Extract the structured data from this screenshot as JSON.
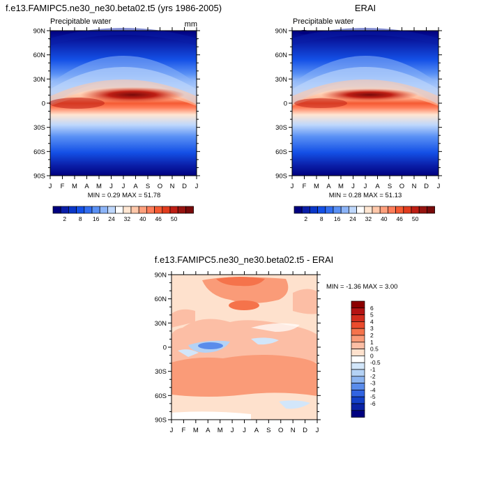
{
  "chart_data": [
    {
      "type": "heatmap",
      "title": "f.e13.FAMIPC5.ne30_ne30.beta02.t5 (yrs 1986-2005)",
      "subtitle": "Precipitable water",
      "units": "mm",
      "x_ticks": [
        "J",
        "F",
        "M",
        "A",
        "M",
        "J",
        "J",
        "A",
        "S",
        "O",
        "N",
        "D",
        "J"
      ],
      "y_ticks": [
        "90N",
        "60N",
        "30N",
        "0",
        "30S",
        "60S",
        "90S"
      ],
      "stats_label": "MIN =  0.29 MAX =  51.78",
      "colorbar": {
        "levels": [
          "2",
          "8",
          "16",
          "24",
          "32",
          "40",
          "46",
          "50"
        ],
        "colors": [
          "#00007f",
          "#0a1ea8",
          "#0a37c8",
          "#1450e6",
          "#326ef0",
          "#5a91f5",
          "#8cb4f8",
          "#bed7fc",
          "#ffffff",
          "#ffe6d2",
          "#ffc8aa",
          "#ffa07d",
          "#ff7d5a",
          "#f55a32",
          "#e13c1e",
          "#be1e14",
          "#961410",
          "#780a0a"
        ]
      }
    },
    {
      "type": "heatmap",
      "title": "ERAI",
      "subtitle": "Precipitable water",
      "x_ticks": [
        "J",
        "F",
        "M",
        "A",
        "M",
        "J",
        "J",
        "A",
        "S",
        "O",
        "N",
        "D",
        "J"
      ],
      "y_ticks": [
        "90N",
        "60N",
        "30N",
        "0",
        "30S",
        "60S",
        "90S"
      ],
      "stats_label": "MIN =  0.28 MAX =  51.13",
      "colorbar": {
        "levels": [
          "2",
          "8",
          "16",
          "24",
          "32",
          "40",
          "46",
          "50"
        ],
        "colors": [
          "#00007f",
          "#0a1ea8",
          "#0a37c8",
          "#1450e6",
          "#326ef0",
          "#5a91f5",
          "#8cb4f8",
          "#bed7fc",
          "#ffffff",
          "#ffe6d2",
          "#ffc8aa",
          "#ffa07d",
          "#ff7d5a",
          "#f55a32",
          "#e13c1e",
          "#be1e14",
          "#961410",
          "#780a0a"
        ]
      }
    },
    {
      "type": "heatmap",
      "title": "f.e13.FAMIPC5.ne30_ne30.beta02.t5 - ERAI",
      "x_ticks": [
        "J",
        "F",
        "M",
        "A",
        "M",
        "J",
        "J",
        "A",
        "S",
        "O",
        "N",
        "D",
        "J"
      ],
      "y_ticks": [
        "90N",
        "60N",
        "30N",
        "0",
        "30S",
        "60S",
        "90S"
      ],
      "stats_label": "MIN =  -1.36 MAX =   3.00",
      "colorbar": {
        "levels": [
          "6",
          "5",
          "4",
          "3",
          "2",
          "1",
          "0.5",
          "0",
          "-0.5",
          "-1",
          "-2",
          "-3",
          "-4",
          "-5",
          "-6"
        ],
        "colors": [
          "#8c0000",
          "#b41414",
          "#d22d1e",
          "#eb4b2d",
          "#f5734b",
          "#fa9b78",
          "#fcbea5",
          "#fee1cd",
          "#ffffff",
          "#d2e6fa",
          "#b4d2f5",
          "#8cb4f0",
          "#5a8ceb",
          "#3264e1",
          "#1441c8",
          "#0a23a5",
          "#000080"
        ]
      }
    }
  ]
}
